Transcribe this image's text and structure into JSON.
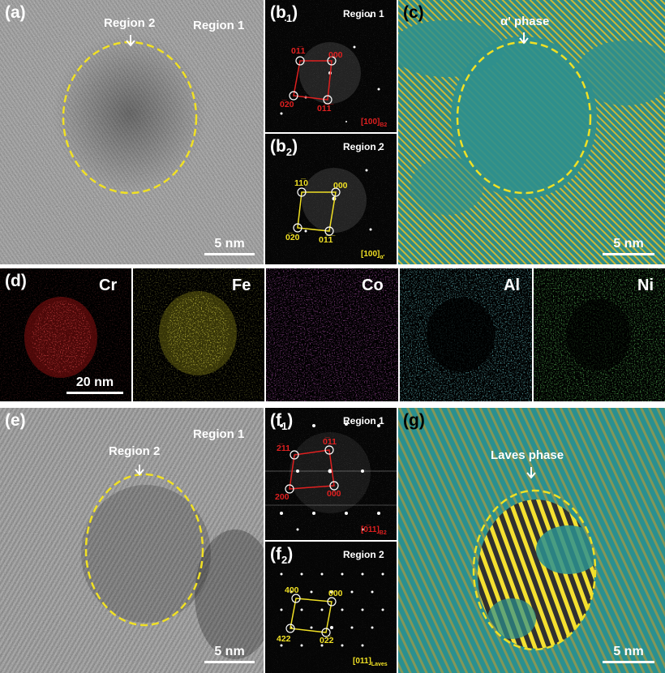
{
  "colors": {
    "highlight": "#f0e024",
    "fft_red": "#e02020",
    "cr": "#ff2020",
    "fe": "#e8e020",
    "co": "#c020c0",
    "al": "#30d0e0",
    "ni": "#20c020",
    "map_teal": "#2a9a9a"
  },
  "panel_a": {
    "label": "(a)",
    "region2": "Region 2",
    "region1": "Region 1",
    "scale": "5 nm"
  },
  "panel_b1": {
    "label_main": "(b",
    "label_sub": "1",
    "label_end": ")",
    "region": "Region 1",
    "spots": [
      "01̅1",
      "000",
      "0̅20",
      "01̅1̅"
    ],
    "zone_main": "[100]",
    "zone_sub": "B2"
  },
  "panel_b2": {
    "label_main": "(b",
    "label_sub": "2",
    "label_end": ")",
    "region": "Region 2",
    "spots": [
      "11̅0",
      "000",
      "0̅20",
      "01̅1̅"
    ],
    "zone_main": "[100]",
    "zone_sub": "α'"
  },
  "panel_c": {
    "label": "(c)",
    "phase": "α' phase",
    "scale": "5 nm"
  },
  "panel_d": {
    "label": "(d)",
    "elements": [
      "Cr",
      "Fe",
      "Co",
      "Al",
      "Ni"
    ],
    "scale": "20 nm"
  },
  "panel_e": {
    "label": "(e)",
    "region2": "Region 2",
    "region1": "Region 1",
    "scale": "5 nm"
  },
  "panel_f1": {
    "label_main": "(f",
    "label_sub": "1",
    "label_end": ")",
    "region": "Region 1",
    "spots": [
      "2̅11",
      "0̅11",
      "200",
      "000"
    ],
    "zone_main": "[0̅11]",
    "zone_sub": "B2"
  },
  "panel_f2": {
    "label_main": "(f",
    "label_sub": "2",
    "label_end": ")",
    "region": "Region 2",
    "spots": [
      "400",
      "000",
      "422",
      "02̅2"
    ],
    "zone_main": "[011]",
    "zone_sub": "Laves"
  },
  "panel_g": {
    "label": "(g)",
    "phase": "Laves phase",
    "scale": "5 nm"
  }
}
